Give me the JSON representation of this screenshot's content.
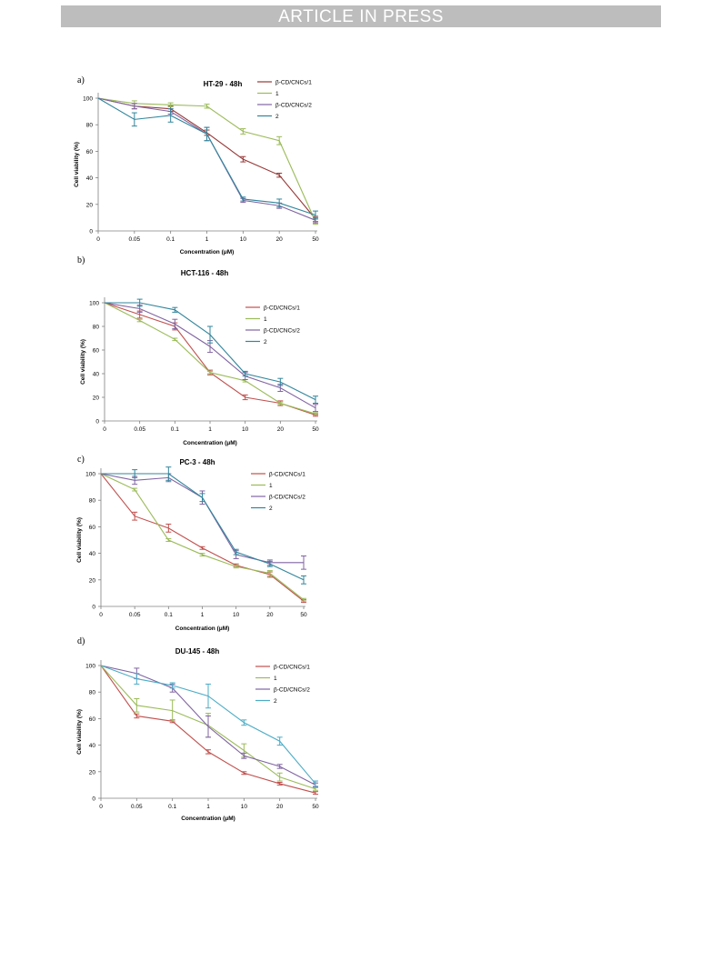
{
  "header": {
    "banner_text": "ARTICLE IN PRESS"
  },
  "colors": {
    "s1": "#c0504d",
    "s2": "#9bbb59",
    "s3": "#8064a2",
    "s4": "#31859c",
    "s4b": "#4bacc6"
  },
  "chart_data": [
    {
      "type": "line",
      "panel_label": "a)",
      "title": "HT-29 - 48h",
      "xlabel": "Concentration (μM)",
      "ylabel": "Cell viability (%)",
      "categories": [
        "0",
        "0.05",
        "0.1",
        "1",
        "10",
        "20",
        "50"
      ],
      "ylim": [
        0,
        100
      ],
      "yticks": [
        "0",
        "20",
        "40",
        "60",
        "80",
        "100"
      ],
      "legend_position": "top-right",
      "series": [
        {
          "name": "β-CD/CNCs/1",
          "color": "#953735",
          "values": [
            100,
            94,
            92,
            74,
            54,
            42,
            9
          ],
          "errors": [
            0,
            2,
            2,
            2,
            2,
            1.5,
            2
          ]
        },
        {
          "name": "1",
          "color": "#9bbb59",
          "values": [
            100,
            96,
            95,
            94,
            75,
            68,
            7
          ],
          "errors": [
            0,
            2,
            1.5,
            1.5,
            2,
            3,
            2
          ]
        },
        {
          "name": "β-CD/CNCs/2",
          "color": "#8064a2",
          "values": [
            100,
            94,
            90,
            73,
            23,
            19,
            8
          ],
          "errors": [
            0,
            2,
            2,
            5,
            1.5,
            2,
            2
          ]
        },
        {
          "name": "2",
          "color": "#31859c",
          "values": [
            100,
            84,
            87,
            73,
            24,
            21,
            12
          ],
          "errors": [
            0,
            5,
            5,
            5,
            1.5,
            3,
            3
          ]
        }
      ]
    },
    {
      "type": "line",
      "panel_label": "b)",
      "title": "HCT-116 - 48h",
      "xlabel": "Concentration (μM)",
      "ylabel": "Cell viability (%)",
      "categories": [
        "0",
        "0.05",
        "0.1",
        "1",
        "10",
        "20",
        "50"
      ],
      "ylim": [
        0,
        100
      ],
      "yticks": [
        "0",
        "20",
        "40",
        "60",
        "80",
        "100"
      ],
      "legend_position": "right",
      "series": [
        {
          "name": "β-CD/CNCs/1",
          "color": "#c0504d",
          "values": [
            100,
            90,
            80,
            41,
            20,
            15,
            5
          ],
          "errors": [
            0,
            3,
            3,
            2,
            2,
            2,
            1
          ]
        },
        {
          "name": "1",
          "color": "#9bbb59",
          "values": [
            100,
            85,
            69,
            41,
            34,
            15,
            6
          ],
          "errors": [
            0,
            1,
            1,
            1,
            1,
            1,
            1
          ]
        },
        {
          "name": "β-CD/CNCs/2",
          "color": "#8064a2",
          "values": [
            100,
            95,
            82,
            63,
            38,
            28,
            11
          ],
          "errors": [
            0,
            3,
            4,
            5,
            3,
            3,
            3
          ]
        },
        {
          "name": "2",
          "color": "#31859c",
          "values": [
            100,
            100,
            94,
            73,
            40,
            33,
            18
          ],
          "errors": [
            0,
            3,
            2,
            7,
            2,
            3,
            3
          ]
        }
      ]
    },
    {
      "type": "line",
      "panel_label": "c)",
      "title": "PC-3 - 48h",
      "xlabel": "Concentration (μM)",
      "ylabel": "Cell viability (%)",
      "categories": [
        "0",
        "0.05",
        "0.1",
        "1",
        "10",
        "20",
        "50"
      ],
      "ylim": [
        0,
        100
      ],
      "yticks": [
        "0",
        "20",
        "40",
        "60",
        "80",
        "100"
      ],
      "legend_position": "right",
      "series": [
        {
          "name": "β-CD/CNCs/1",
          "color": "#c0504d",
          "values": [
            100,
            68,
            59,
            44,
            31,
            24,
            4
          ],
          "errors": [
            0,
            3,
            3,
            1,
            1,
            2,
            1
          ]
        },
        {
          "name": "1",
          "color": "#9bbb59",
          "values": [
            100,
            88,
            50,
            39,
            30,
            25,
            5
          ],
          "errors": [
            0,
            1,
            1,
            1,
            1,
            2,
            1
          ]
        },
        {
          "name": "β-CD/CNCs/2",
          "color": "#8064a2",
          "values": [
            100,
            95,
            97,
            82,
            39,
            33,
            33
          ],
          "errors": [
            0,
            3,
            3,
            5,
            3,
            2,
            5
          ]
        },
        {
          "name": "2",
          "color": "#31859c",
          "values": [
            100,
            100,
            100,
            82,
            41,
            32,
            20
          ],
          "errors": [
            0,
            3,
            5,
            3,
            2,
            2,
            3
          ]
        }
      ]
    },
    {
      "type": "line",
      "panel_label": "d)",
      "title": "DU-145 - 48h",
      "xlabel": "Concentration (μM)",
      "ylabel": "Cell viability (%)",
      "categories": [
        "0",
        "0.05",
        "0.1",
        "1",
        "10",
        "20",
        "50"
      ],
      "ylim": [
        0,
        100
      ],
      "yticks": [
        "0",
        "20",
        "40",
        "60",
        "80",
        "100"
      ],
      "legend_position": "top-right",
      "series": [
        {
          "name": "β-CD/CNCs/1",
          "color": "#c0504d",
          "values": [
            100,
            62,
            58,
            35,
            19,
            11,
            4
          ],
          "errors": [
            0,
            1.5,
            1,
            1.5,
            1,
            1,
            1
          ]
        },
        {
          "name": "1",
          "color": "#9bbb59",
          "values": [
            100,
            70,
            66,
            55,
            36,
            16,
            7
          ],
          "errors": [
            0,
            5,
            8,
            9,
            5,
            3,
            1
          ]
        },
        {
          "name": "β-CD/CNCs/2",
          "color": "#8064a2",
          "values": [
            100,
            94,
            83,
            54,
            32,
            24,
            10
          ],
          "errors": [
            0,
            4,
            3,
            8,
            2,
            1.5,
            1.5
          ]
        },
        {
          "name": "2",
          "color": "#4bacc6",
          "values": [
            100,
            90,
            85,
            77,
            57,
            43,
            11
          ],
          "errors": [
            0,
            4,
            2,
            9,
            2,
            3,
            2
          ]
        }
      ]
    }
  ]
}
